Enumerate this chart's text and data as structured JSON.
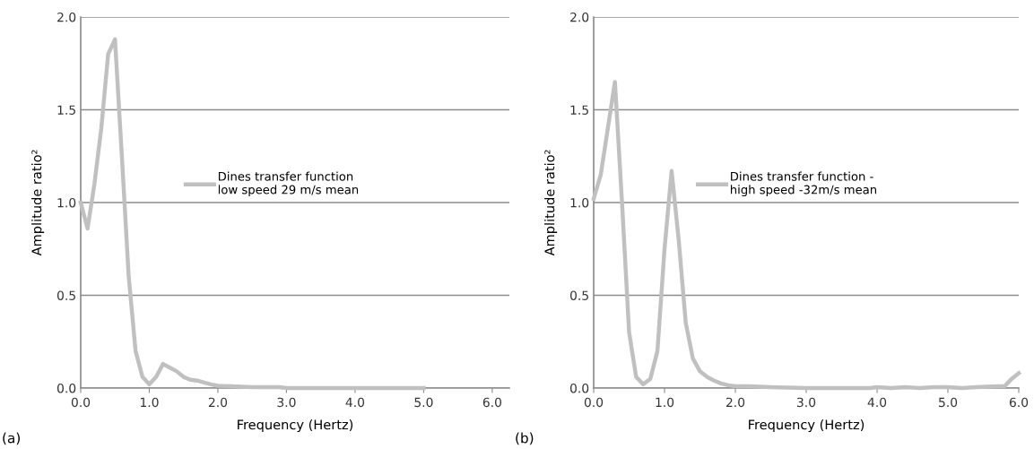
{
  "chart_data": [
    {
      "type": "line",
      "xlabel": "Frequency (Hertz)",
      "ylabel": "Amplitude ratio²",
      "annotations": [
        "(a)"
      ],
      "legend": "center",
      "grid": "y",
      "line_style": "solid",
      "marker": "none",
      "xlim": [
        0,
        6.25
      ],
      "xticks": [
        {
          "value": 0,
          "label": "0.0"
        },
        {
          "value": 1,
          "label": "1.0"
        },
        {
          "value": 2,
          "label": "2.0"
        },
        {
          "value": 3,
          "label": "3.0"
        },
        {
          "value": 4,
          "label": "4.0"
        },
        {
          "value": 5,
          "label": "5.0"
        },
        {
          "value": 6,
          "label": "6.0"
        }
      ],
      "ylim": [
        0,
        2
      ],
      "yticks": [
        {
          "value": 0,
          "label": "0.0"
        },
        {
          "value": 0.5,
          "label": "0.5"
        },
        {
          "value": 1,
          "label": "1.0"
        },
        {
          "value": 1.5,
          "label": "1.5"
        },
        {
          "value": 2,
          "label": "2.0"
        }
      ],
      "x": [
        0,
        0.1,
        0.2,
        0.3,
        0.4,
        0.5,
        0.6,
        0.7,
        0.8,
        0.9,
        1.0,
        1.1,
        1.2,
        1.3,
        1.4,
        1.5,
        1.6,
        1.7,
        1.8,
        1.9,
        2.0,
        2.2,
        2.5,
        2.9,
        3.0,
        5.0
      ],
      "series": [
        {
          "name": "Dines transfer function\nlow speed 29 m/s mean",
          "color": "#c0c0c0",
          "values": [
            1.0,
            0.86,
            1.1,
            1.4,
            1.8,
            1.88,
            1.25,
            0.6,
            0.2,
            0.06,
            0.02,
            0.06,
            0.13,
            0.11,
            0.09,
            0.06,
            0.045,
            0.04,
            0.03,
            0.02,
            0.012,
            0.01,
            0.005,
            0.005,
            0,
            0
          ]
        }
      ]
    },
    {
      "type": "line",
      "xlabel": "Frequency (Hertz)",
      "ylabel": "Amplitude ratio²",
      "annotations": [
        "(b)"
      ],
      "legend": "center",
      "grid": "y",
      "line_style": "solid",
      "marker": "none",
      "xlim": [
        0,
        6
      ],
      "xticks": [
        {
          "value": 0,
          "label": "0.0"
        },
        {
          "value": 1,
          "label": "1.0"
        },
        {
          "value": 2,
          "label": "2.0"
        },
        {
          "value": 3,
          "label": "3.0"
        },
        {
          "value": 4,
          "label": "4.0"
        },
        {
          "value": 5,
          "label": "5.0"
        },
        {
          "value": 6,
          "label": "6.0"
        }
      ],
      "ylim": [
        0,
        2
      ],
      "yticks": [
        {
          "value": 0,
          "label": "0.0"
        },
        {
          "value": 0.5,
          "label": "0.5"
        },
        {
          "value": 1,
          "label": "1.0"
        },
        {
          "value": 1.5,
          "label": "1.5"
        },
        {
          "value": 2,
          "label": "2.0"
        }
      ],
      "x": [
        0,
        0.1,
        0.2,
        0.3,
        0.4,
        0.5,
        0.6,
        0.7,
        0.8,
        0.9,
        1.0,
        1.1,
        1.2,
        1.3,
        1.4,
        1.5,
        1.6,
        1.7,
        1.8,
        1.9,
        2.0,
        2.2,
        2.5,
        3.0,
        3.9,
        4.0,
        4.2,
        4.4,
        4.6,
        4.8,
        5.0,
        5.2,
        5.4,
        5.7,
        5.8,
        5.9,
        6.0
      ],
      "series": [
        {
          "name": "Dines transfer function -\nhigh speed -32m/s mean",
          "color": "#c0c0c0",
          "values": [
            1.02,
            1.15,
            1.4,
            1.65,
            1.0,
            0.3,
            0.06,
            0.02,
            0.05,
            0.2,
            0.75,
            1.17,
            0.8,
            0.35,
            0.16,
            0.09,
            0.06,
            0.04,
            0.025,
            0.015,
            0.01,
            0.01,
            0.005,
            0,
            0,
            0.005,
            0,
            0.005,
            0,
            0.005,
            0.005,
            0,
            0.005,
            0.01,
            0.01,
            0.05,
            0.08
          ]
        }
      ]
    }
  ]
}
